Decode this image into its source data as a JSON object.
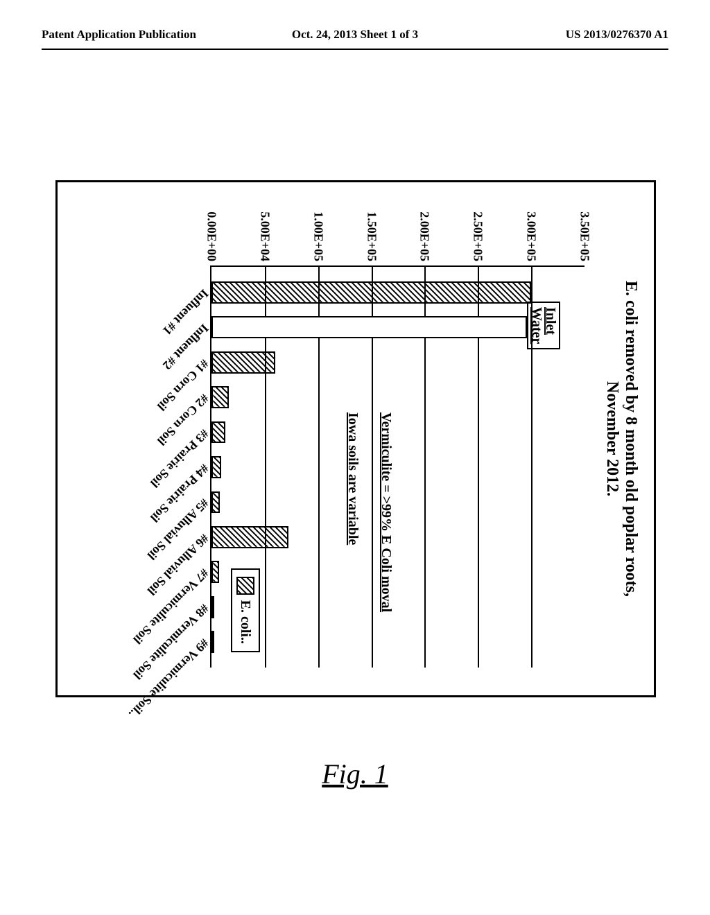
{
  "header": {
    "left": "Patent Application Publication",
    "center": "Oct. 24, 2013  Sheet 1 of 3",
    "right": "US 2013/0276370 A1"
  },
  "figure_caption": "Fig. 1",
  "chart": {
    "type": "bar",
    "title_line1": "E. coli removed by 8 month old poplar roots,",
    "title_line2": "November 2012.",
    "y_axis": {
      "ticks": [
        {
          "label": "0.00E+00",
          "pct": 0
        },
        {
          "label": "5.00E+04",
          "pct": 14.29
        },
        {
          "label": "1.00E+05",
          "pct": 28.57
        },
        {
          "label": "1.50E+05",
          "pct": 42.86
        },
        {
          "label": "2.00E+05",
          "pct": 57.14
        },
        {
          "label": "2.50E+05",
          "pct": 71.43
        },
        {
          "label": "3.00E+05",
          "pct": 85.71
        },
        {
          "label": "3.50E+05",
          "pct": 100
        }
      ],
      "max": 350000
    },
    "bars": [
      {
        "label": "Influent #1",
        "value": 300000,
        "fill": "hatch"
      },
      {
        "label": "Influent #2",
        "value": 296000,
        "fill": "solid"
      },
      {
        "label": "#1 Corn Soil",
        "value": 60000,
        "fill": "hatch"
      },
      {
        "label": "#2 Corn Soil",
        "value": 16000,
        "fill": "hatch"
      },
      {
        "label": "#3 Prairie Soil",
        "value": 13000,
        "fill": "hatch"
      },
      {
        "label": "#4 Prairie Soil",
        "value": 9000,
        "fill": "hatch"
      },
      {
        "label": "#5 Alluvial Soil",
        "value": 8000,
        "fill": "hatch"
      },
      {
        "label": "#6 Alluvial Soil",
        "value": 72000,
        "fill": "hatch"
      },
      {
        "label": "#7 Vermiculite Soil",
        "value": 7000,
        "fill": "hatch"
      },
      {
        "label": "#8 Vermiculite Soil",
        "value": 2000,
        "fill": "hatch"
      },
      {
        "label": "#9 Vermiculite Soil..",
        "value": 1000,
        "fill": "hatch"
      }
    ],
    "annotations": {
      "inlet": "Inlet\nWater",
      "verm": "Vermiculite = >99% E Coli moval",
      "iowa": "Iowa soils are variable"
    },
    "legend_label": "E. coli..",
    "colors": {
      "bar_border": "#000000",
      "bar_fill_solid": "#ffffff",
      "hatch_color": "#000000",
      "background": "#ffffff",
      "grid": "#000000"
    },
    "bar_width_pct": 5.5,
    "title_fontsize": 24,
    "tick_fontsize": 18,
    "label_fontsize": 18
  }
}
